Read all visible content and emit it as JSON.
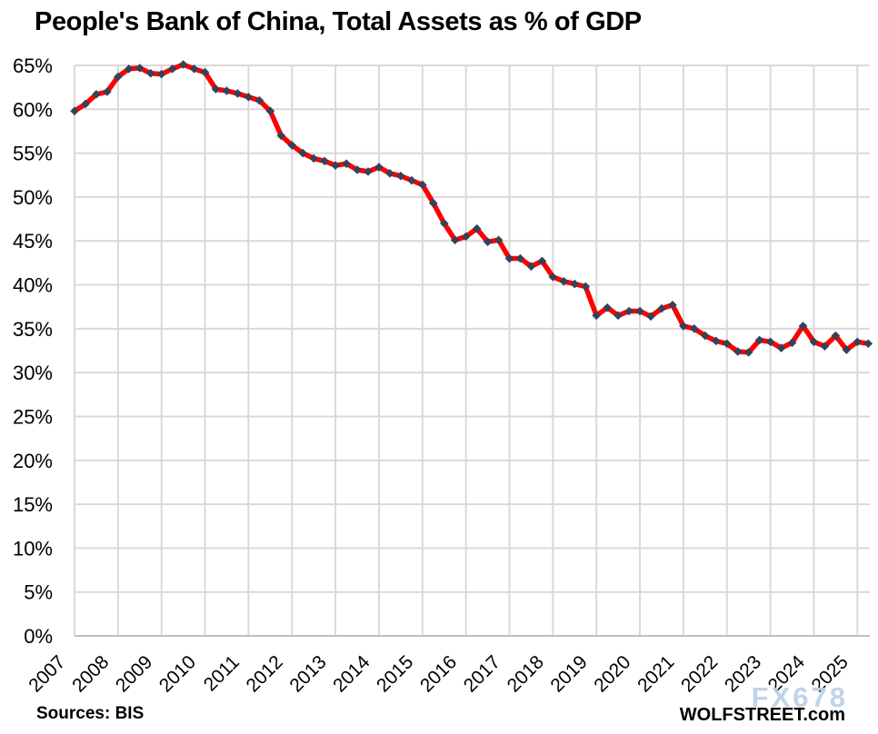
{
  "chart_data": {
    "type": "line",
    "title": "People's Bank of China, Total Assets as % of GDP",
    "x_start": "2007-Q1",
    "x_end": "2025-Q2",
    "x_frequency": "quarterly",
    "ylim": [
      0,
      65
    ],
    "grid": true,
    "legend_position": "none",
    "y_ticks": [
      {
        "value": 0,
        "label": "0%"
      },
      {
        "value": 5,
        "label": "5%"
      },
      {
        "value": 10,
        "label": "10%"
      },
      {
        "value": 15,
        "label": "15%"
      },
      {
        "value": 20,
        "label": "20%"
      },
      {
        "value": 25,
        "label": "25%"
      },
      {
        "value": 30,
        "label": "30%"
      },
      {
        "value": 35,
        "label": "35%"
      },
      {
        "value": 40,
        "label": "40%"
      },
      {
        "value": 45,
        "label": "45%"
      },
      {
        "value": 50,
        "label": "50%"
      },
      {
        "value": 55,
        "label": "55%"
      },
      {
        "value": 60,
        "label": "60%"
      },
      {
        "value": 65,
        "label": "65%"
      }
    ],
    "x_ticks": [
      {
        "year": 2007,
        "label": "2007"
      },
      {
        "year": 2008,
        "label": "2008"
      },
      {
        "year": 2009,
        "label": "2009"
      },
      {
        "year": 2010,
        "label": "2010"
      },
      {
        "year": 2011,
        "label": "2011"
      },
      {
        "year": 2012,
        "label": "2012"
      },
      {
        "year": 2013,
        "label": "2013"
      },
      {
        "year": 2014,
        "label": "2014"
      },
      {
        "year": 2015,
        "label": "2015"
      },
      {
        "year": 2016,
        "label": "2016"
      },
      {
        "year": 2017,
        "label": "2017"
      },
      {
        "year": 2018,
        "label": "2018"
      },
      {
        "year": 2019,
        "label": "2019"
      },
      {
        "year": 2020,
        "label": "2020"
      },
      {
        "year": 2021,
        "label": "2021"
      },
      {
        "year": 2022,
        "label": "2022"
      },
      {
        "year": 2023,
        "label": "2023"
      },
      {
        "year": 2024,
        "label": "2024"
      },
      {
        "year": 2025,
        "label": "2025"
      }
    ],
    "series": [
      {
        "name": "PBoC total assets as % of GDP",
        "line_color": "#FF0000",
        "marker": "diamond",
        "marker_color": "#334359",
        "values": [
          59.8,
          60.6,
          61.7,
          62.0,
          63.7,
          64.6,
          64.7,
          64.1,
          64.0,
          64.6,
          65.1,
          64.6,
          64.2,
          62.3,
          62.1,
          61.8,
          61.4,
          61.0,
          59.8,
          57.0,
          55.9,
          55.0,
          54.4,
          54.1,
          53.6,
          53.8,
          53.1,
          52.9,
          53.4,
          52.7,
          52.4,
          51.9,
          51.4,
          49.3,
          47.0,
          45.1,
          45.5,
          46.4,
          44.9,
          45.1,
          43.0,
          43.0,
          42.1,
          42.7,
          40.9,
          40.4,
          40.1,
          39.8,
          36.5,
          37.4,
          36.5,
          37.0,
          37.0,
          36.4,
          37.3,
          37.7,
          35.3,
          35.0,
          34.2,
          33.6,
          33.3,
          32.4,
          32.3,
          33.7,
          33.5,
          32.8,
          33.4,
          35.3,
          33.5,
          33.0,
          34.2,
          32.6,
          33.5,
          33.3
        ]
      }
    ]
  },
  "footer": {
    "sources": "Sources: BIS",
    "brand": "WOLFSTREET.com",
    "watermark": "FX678"
  },
  "colors": {
    "grid": "#D9D9D9",
    "axis": "#BFBFBF",
    "line": "#FF0000",
    "marker": "#334359",
    "watermark": "#BCD1E9",
    "text": "#000000"
  }
}
